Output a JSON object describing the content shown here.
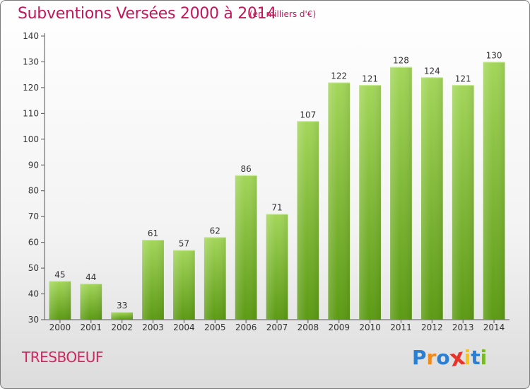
{
  "chart_data": {
    "type": "bar",
    "title": "Subventions Versées 2000 à 2014",
    "subtitle": "(en milliers d'€)",
    "categories": [
      "2000",
      "2001",
      "2002",
      "2003",
      "2004",
      "2005",
      "2006",
      "2007",
      "2008",
      "2009",
      "2010",
      "2011",
      "2012",
      "2013",
      "2014"
    ],
    "values": [
      45,
      44,
      33,
      61,
      57,
      62,
      86,
      71,
      107,
      122,
      121,
      128,
      124,
      121,
      130
    ],
    "ylim": [
      30,
      140
    ],
    "yticks": [
      30,
      40,
      50,
      60,
      70,
      80,
      90,
      100,
      110,
      120,
      130,
      140
    ],
    "xlabel": "",
    "ylabel": "",
    "grid": false,
    "bar_color_top": "#a3d65a",
    "bar_color_bottom": "#5c9a14"
  },
  "commune_name": "TRESBOEUF",
  "logo": {
    "text": "Proxiti",
    "letters": [
      "P",
      "r",
      "o",
      "x",
      "i",
      "t",
      "i"
    ],
    "colors": [
      "#2a7fd4",
      "#f08a1c",
      "#2a7fd4",
      "#e8332a",
      "#f6c417",
      "#2a7fd4",
      "#78b82a"
    ]
  }
}
